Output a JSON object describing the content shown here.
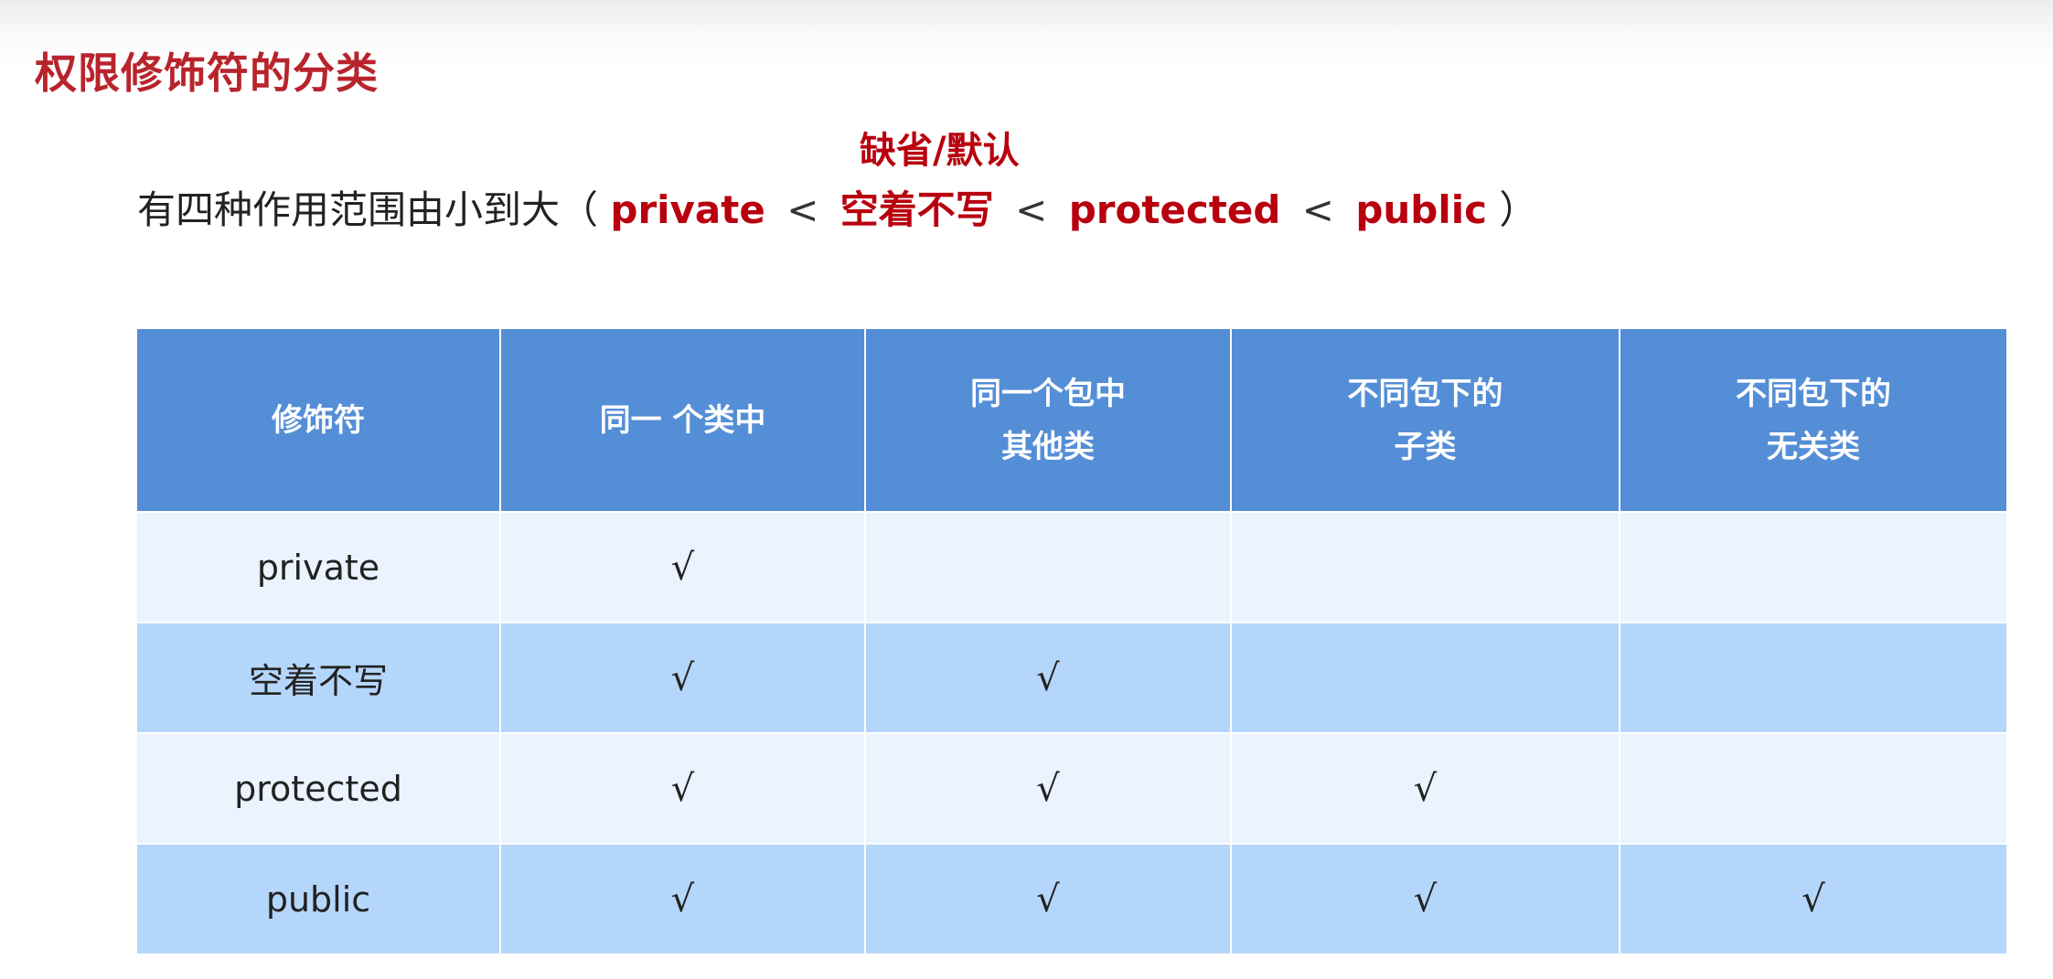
{
  "title": "权限修饰符的分类",
  "annotation": "缺省/默认",
  "intro": {
    "prefix": "有四种作用范围由小到大（",
    "items": [
      "private",
      "空着不写",
      "protected",
      "public"
    ],
    "separator": "<",
    "suffix": "）"
  },
  "colors": {
    "accent_red": "#b8000e",
    "header_bg": "#548ed6",
    "row_light": "#eaf3fe",
    "row_dark": "#b5d6fb"
  },
  "table": {
    "headers": [
      [
        "修饰符"
      ],
      [
        "同一 个类中"
      ],
      [
        "同一个包中",
        "其他类"
      ],
      [
        "不同包下的",
        "子类"
      ],
      [
        "不同包下的",
        "无关类"
      ]
    ],
    "rows": [
      {
        "modifier": "private",
        "cells": [
          "√",
          "",
          "",
          ""
        ]
      },
      {
        "modifier": "空着不写",
        "cells": [
          "√",
          "√",
          "",
          ""
        ]
      },
      {
        "modifier": "protected",
        "cells": [
          "√",
          "√",
          "√",
          ""
        ]
      },
      {
        "modifier": "public",
        "cells": [
          "√",
          "√",
          "√",
          "√"
        ]
      }
    ]
  }
}
